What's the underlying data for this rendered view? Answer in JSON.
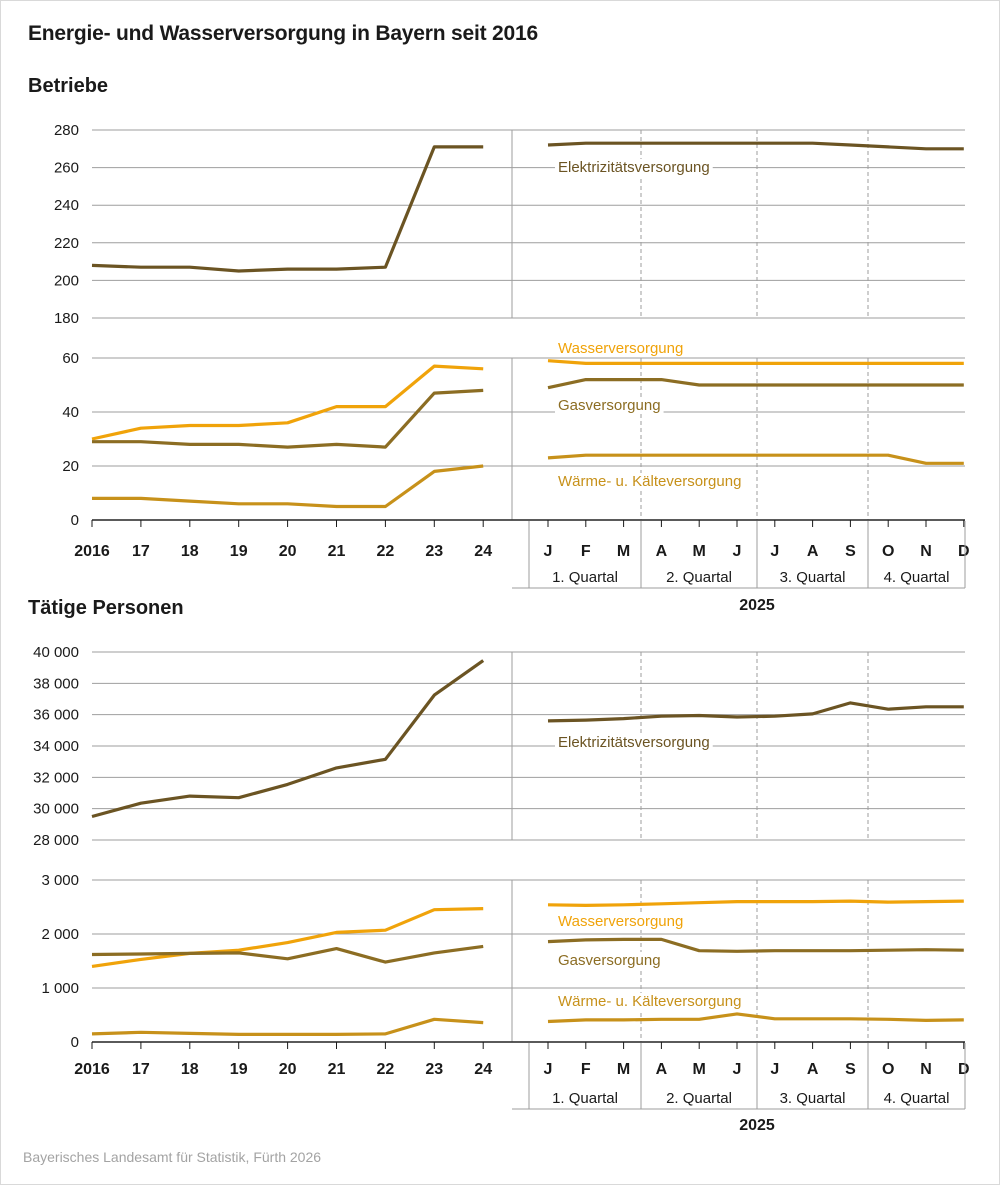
{
  "title": "Energie- und Wasserversorgung in Bayern seit 2016",
  "source": "Bayerisches Landesamt für Statistik, Fürth 2026",
  "colors": {
    "elektrizitaet": "#6b5423",
    "gas": "#8c6d23",
    "wasser": "#f0a30a",
    "waerme": "#c7911a",
    "grid": "#9e9e9e"
  },
  "chart_data": [
    {
      "type": "line",
      "title": "Betriebe",
      "annual_x": [
        "2016",
        "17",
        "18",
        "19",
        "20",
        "21",
        "22",
        "23",
        "24"
      ],
      "monthly_x": [
        "J",
        "F",
        "M",
        "A",
        "M",
        "J",
        "J",
        "A",
        "S",
        "O",
        "N",
        "D"
      ],
      "quarters": [
        "1. Quartal",
        "2. Quartal",
        "3. Quartal",
        "4. Quartal"
      ],
      "monthly_year": "2025",
      "panels": [
        {
          "ylim": [
            180,
            280
          ],
          "yticks": [
            "180",
            "200",
            "220",
            "240",
            "260",
            "280"
          ],
          "series": [
            {
              "key": "elektrizitaet",
              "name": "Elektrizitätsversorgung",
              "annual": [
                208,
                207,
                207,
                205,
                206,
                206,
                207,
                271,
                271
              ],
              "monthly": [
                272,
                273,
                273,
                273,
                273,
                273,
                273,
                273,
                272,
                271,
                270,
                270
              ]
            }
          ]
        },
        {
          "ylim": [
            0,
            60
          ],
          "yticks": [
            "0",
            "20",
            "40",
            "60"
          ],
          "series": [
            {
              "key": "wasser",
              "name": "Wasserversorgung",
              "annual": [
                30,
                34,
                35,
                35,
                36,
                42,
                42,
                57,
                56
              ],
              "monthly": [
                59,
                58,
                58,
                58,
                58,
                58,
                58,
                58,
                58,
                58,
                58,
                58
              ]
            },
            {
              "key": "gas",
              "name": "Gasversorgung",
              "annual": [
                29,
                29,
                28,
                28,
                27,
                28,
                27,
                47,
                48
              ],
              "monthly": [
                49,
                52,
                52,
                52,
                50,
                50,
                50,
                50,
                50,
                50,
                50,
                50
              ]
            },
            {
              "key": "waerme",
              "name": "Wärme- u. Kälteversorgung",
              "annual": [
                8,
                8,
                7,
                6,
                6,
                5,
                5,
                18,
                20
              ],
              "monthly": [
                23,
                24,
                24,
                24,
                24,
                24,
                24,
                24,
                24,
                24,
                21,
                21
              ]
            }
          ]
        }
      ]
    },
    {
      "type": "line",
      "title": "Tätige Personen",
      "annual_x": [
        "2016",
        "17",
        "18",
        "19",
        "20",
        "21",
        "22",
        "23",
        "24"
      ],
      "monthly_x": [
        "J",
        "F",
        "M",
        "A",
        "M",
        "J",
        "J",
        "A",
        "S",
        "O",
        "N",
        "D"
      ],
      "quarters": [
        "1. Quartal",
        "2. Quartal",
        "3. Quartal",
        "4. Quartal"
      ],
      "monthly_year": "2025",
      "panels": [
        {
          "ylim": [
            28000,
            40000
          ],
          "yticks": [
            "28 000",
            "30 000",
            "32 000",
            "34 000",
            "36 000",
            "38 000",
            "40 000"
          ],
          "series": [
            {
              "key": "elektrizitaet",
              "name": "Elektrizitätsversorgung",
              "annual": [
                29500,
                30350,
                30800,
                30700,
                31550,
                32600,
                33150,
                37250,
                39450
              ],
              "monthly": [
                35600,
                35650,
                35750,
                35900,
                35950,
                35850,
                35900,
                36050,
                36750,
                36350,
                36500,
                36500
              ]
            }
          ]
        },
        {
          "ylim": [
            0,
            3000
          ],
          "yticks": [
            "0",
            "1 000",
            "2 000",
            "3 000"
          ],
          "series": [
            {
              "key": "wasser",
              "name": "Wasserversorgung",
              "annual": [
                1400,
                1530,
                1640,
                1700,
                1840,
                2030,
                2070,
                2450,
                2470
              ],
              "monthly": [
                2540,
                2530,
                2540,
                2560,
                2580,
                2600,
                2600,
                2600,
                2610,
                2590,
                2600,
                2610
              ]
            },
            {
              "key": "gas",
              "name": "Gasversorgung",
              "annual": [
                1620,
                1630,
                1640,
                1650,
                1540,
                1730,
                1480,
                1650,
                1770
              ],
              "monthly": [
                1860,
                1890,
                1900,
                1900,
                1690,
                1680,
                1690,
                1690,
                1690,
                1700,
                1710,
                1700
              ]
            },
            {
              "key": "waerme",
              "name": "Wärme- u. Kälteversorgung",
              "annual": [
                150,
                180,
                160,
                140,
                140,
                140,
                150,
                420,
                360
              ],
              "monthly": [
                380,
                410,
                410,
                420,
                420,
                520,
                430,
                430,
                430,
                420,
                400,
                410
              ]
            }
          ]
        }
      ]
    }
  ]
}
